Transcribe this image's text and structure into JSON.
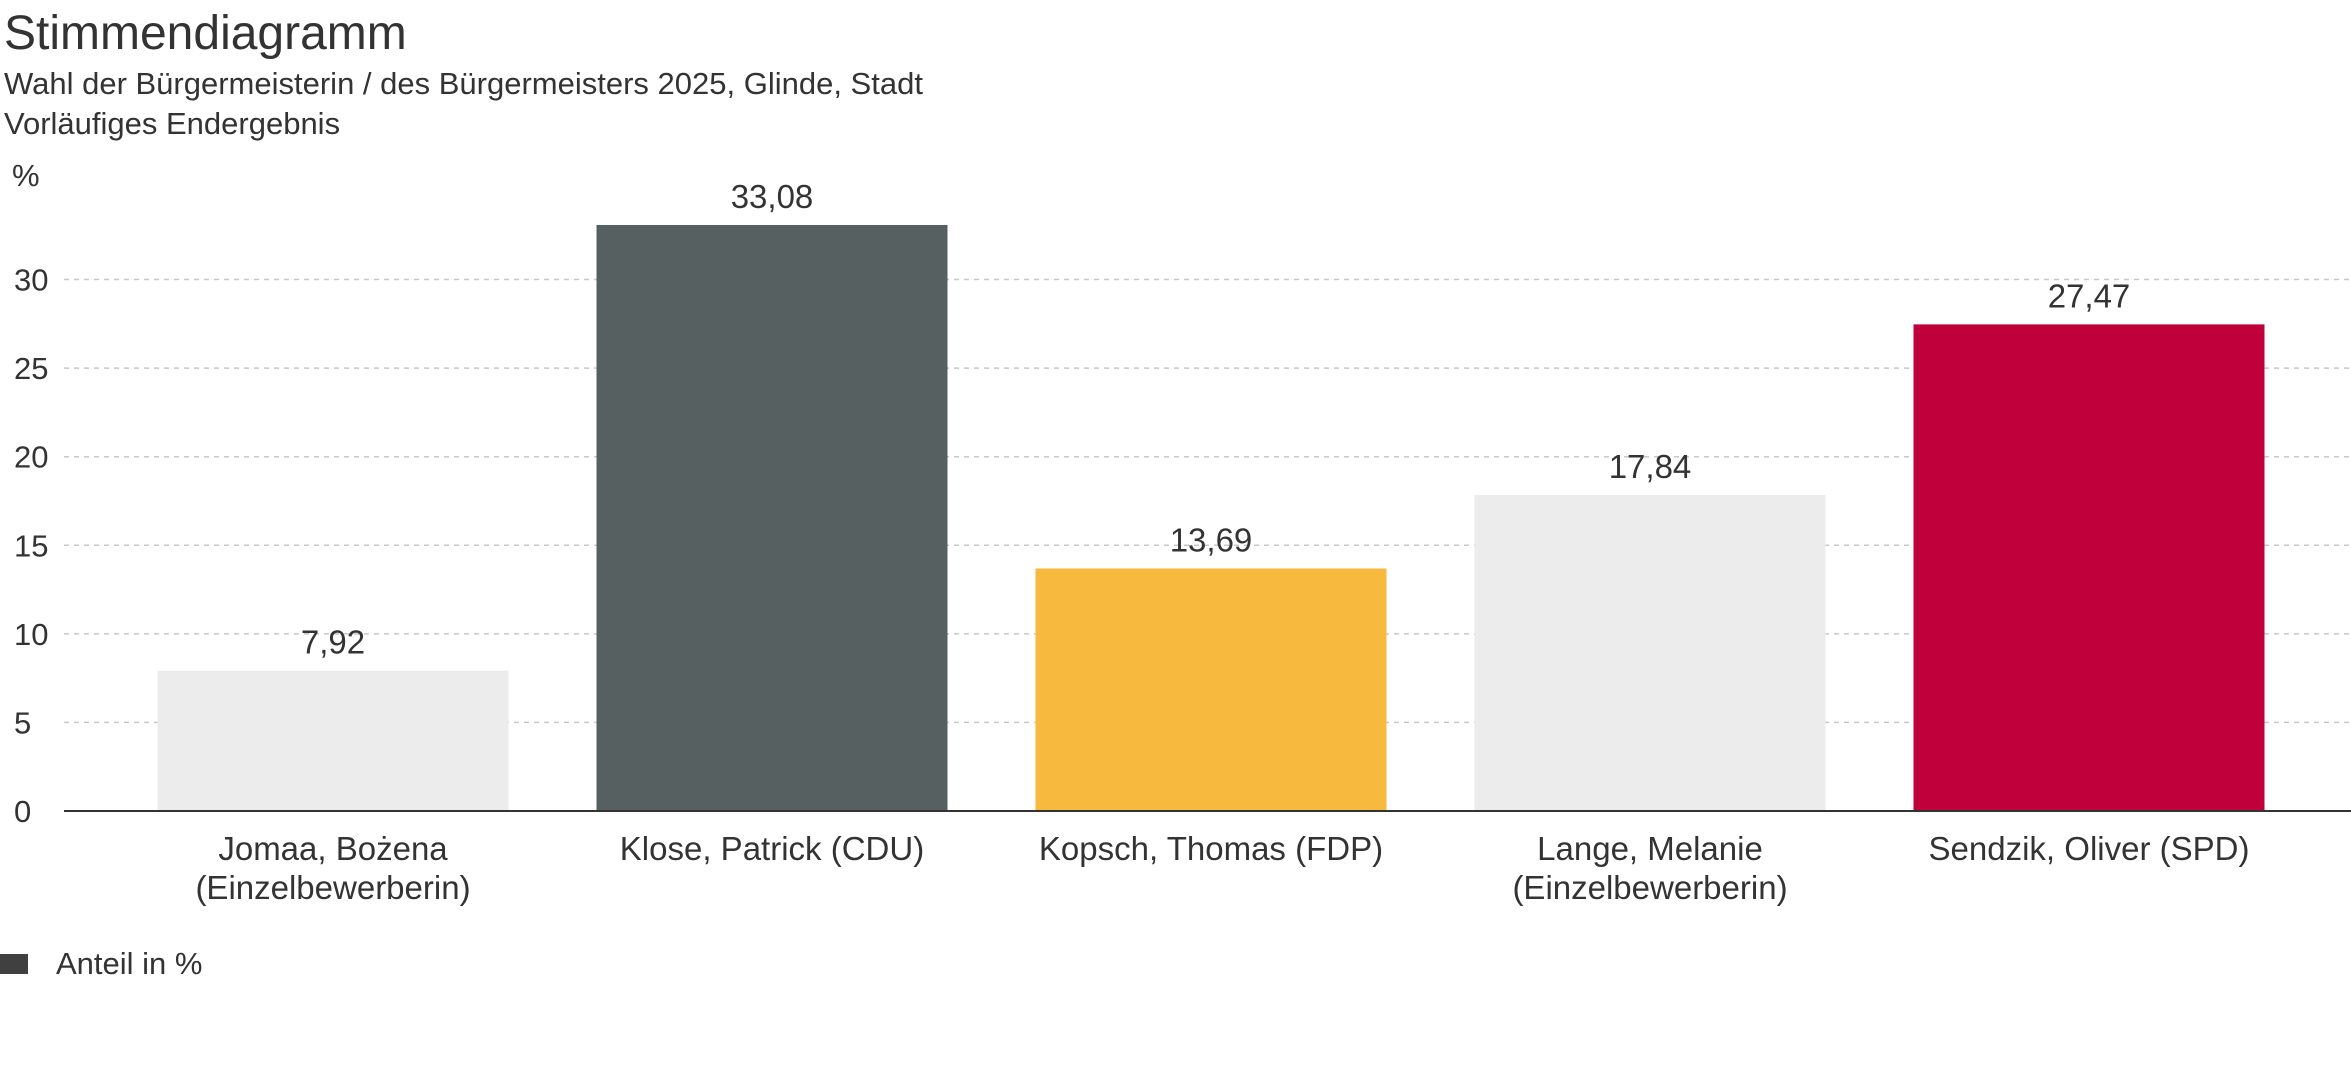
{
  "chart_data": {
    "type": "bar",
    "title": "Stimmendiagramm",
    "subtitle_lines": [
      "Wahl der Bürgermeisterin / des Bürgermeisters 2025, Glinde, Stadt",
      "Vorläufiges Endergebnis"
    ],
    "ylabel": "%",
    "ylim": [
      0,
      33.08
    ],
    "yticks": [
      "0",
      "5",
      "10",
      "15",
      "20",
      "25",
      "30"
    ],
    "ytick_values": [
      0,
      5,
      10,
      15,
      20,
      25,
      30
    ],
    "grid": true,
    "categories": [
      [
        "Jomaa, Bożena",
        "(Einzelbewerberin)"
      ],
      [
        "Klose, Patrick (CDU)"
      ],
      [
        "Kopsch, Thomas (FDP)"
      ],
      [
        "Lange, Melanie",
        "(Einzelbewerberin)"
      ],
      [
        "Sendzik, Oliver (SPD)"
      ]
    ],
    "values": [
      7.92,
      33.08,
      13.69,
      17.84,
      27.47
    ],
    "value_labels": [
      "7,92",
      "33,08",
      "13,69",
      "17,84",
      "27,47"
    ],
    "colors": [
      "#ececec",
      "#566061",
      "#f7b93e",
      "#ececec",
      "#c0003a"
    ],
    "legend": {
      "position": "bottom-left",
      "label": "Anteil in %",
      "color": "#404040"
    }
  }
}
